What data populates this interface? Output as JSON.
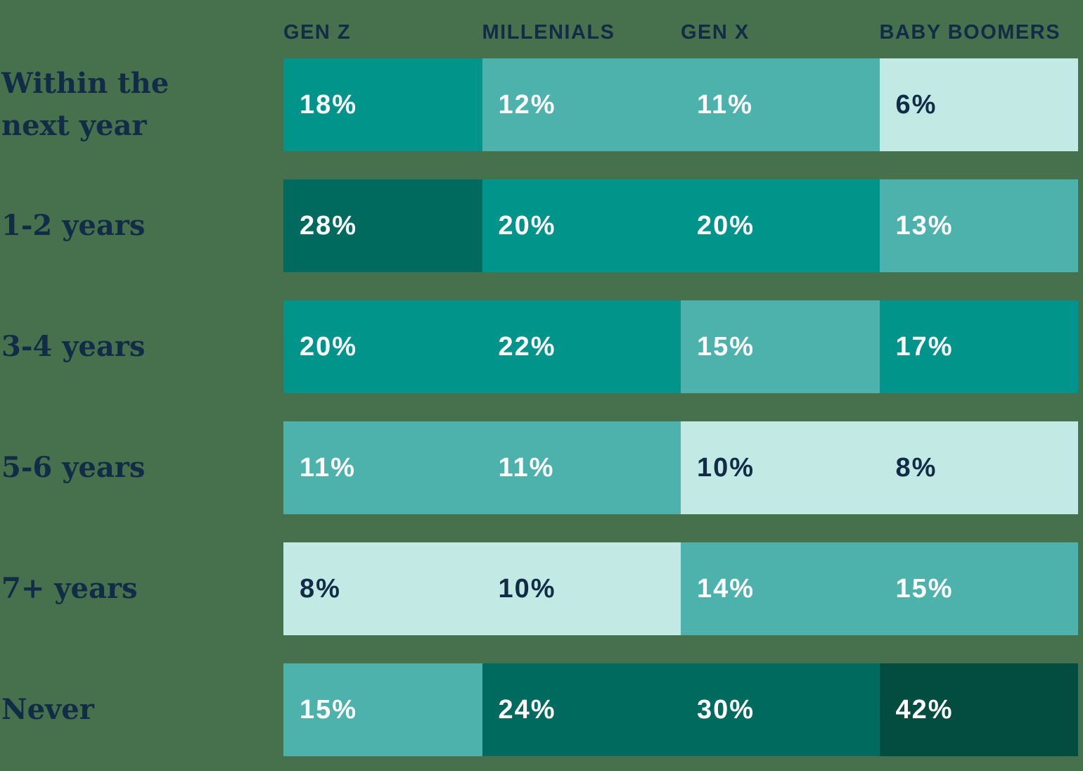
{
  "palette": {
    "background": "#47704d",
    "label_text": "#112c46",
    "text_light": "#ffffff",
    "text_dark": "#112c46",
    "t1": "#c2e9e3",
    "t2": "#4cb2ab",
    "t3": "#00948a",
    "t4": "#016a5e",
    "t5": "#024d40"
  },
  "grid": {
    "headers": [
      "GEN Z",
      "MILLENIALS",
      "GEN X",
      "BABY BOOMERS"
    ],
    "rows": [
      {
        "label": "Within the next year",
        "cells": [
          {
            "display": "18%",
            "tone": "t3",
            "text": "light"
          },
          {
            "display": "12%",
            "tone": "t2",
            "text": "light"
          },
          {
            "display": "11%",
            "tone": "t2",
            "text": "light"
          },
          {
            "display": "6%",
            "tone": "t1",
            "text": "dark"
          }
        ]
      },
      {
        "label": "1-2 years",
        "cells": [
          {
            "display": "28%",
            "tone": "t4",
            "text": "light"
          },
          {
            "display": "20%",
            "tone": "t3",
            "text": "light"
          },
          {
            "display": "20%",
            "tone": "t3",
            "text": "light"
          },
          {
            "display": "13%",
            "tone": "t2",
            "text": "light"
          }
        ]
      },
      {
        "label": "3-4 years",
        "cells": [
          {
            "display": "20%",
            "tone": "t3",
            "text": "light"
          },
          {
            "display": "22%",
            "tone": "t3",
            "text": "light"
          },
          {
            "display": "15%",
            "tone": "t2",
            "text": "light"
          },
          {
            "display": "17%",
            "tone": "t3",
            "text": "light"
          }
        ]
      },
      {
        "label": "5-6 years",
        "cells": [
          {
            "display": "11%",
            "tone": "t2",
            "text": "light"
          },
          {
            "display": "11%",
            "tone": "t2",
            "text": "light"
          },
          {
            "display": "10%",
            "tone": "t1",
            "text": "dark"
          },
          {
            "display": "8%",
            "tone": "t1",
            "text": "dark"
          }
        ]
      },
      {
        "label": "7+ years",
        "cells": [
          {
            "display": "8%",
            "tone": "t1",
            "text": "dark"
          },
          {
            "display": "10%",
            "tone": "t1",
            "text": "dark"
          },
          {
            "display": "14%",
            "tone": "t2",
            "text": "light"
          },
          {
            "display": "15%",
            "tone": "t2",
            "text": "light"
          }
        ]
      },
      {
        "label": "Never",
        "cells": [
          {
            "display": "15%",
            "tone": "t2",
            "text": "light"
          },
          {
            "display": "24%",
            "tone": "t4",
            "text": "light"
          },
          {
            "display": "30%",
            "tone": "t4",
            "text": "light"
          },
          {
            "display": "42%",
            "tone": "t5",
            "text": "light"
          }
        ]
      }
    ]
  },
  "chart_data": {
    "type": "heatmap",
    "title": "",
    "columns": [
      "GEN Z",
      "MILLENIALS",
      "GEN X",
      "BABY BOOMERS"
    ],
    "rows": [
      "Within the next year",
      "1-2 years",
      "3-4 years",
      "5-6 years",
      "7+ years",
      "Never"
    ],
    "values": [
      [
        18,
        12,
        11,
        6
      ],
      [
        28,
        20,
        20,
        13
      ],
      [
        20,
        22,
        15,
        17
      ],
      [
        11,
        11,
        10,
        8
      ],
      [
        8,
        10,
        14,
        15
      ],
      [
        15,
        24,
        30,
        42
      ]
    ],
    "unit": "%",
    "value_range": [
      6,
      42
    ],
    "color_scale": [
      "#c2e9e3",
      "#4cb2ab",
      "#00948a",
      "#016a5e",
      "#024d40"
    ],
    "legend": "none",
    "grid": "off"
  }
}
